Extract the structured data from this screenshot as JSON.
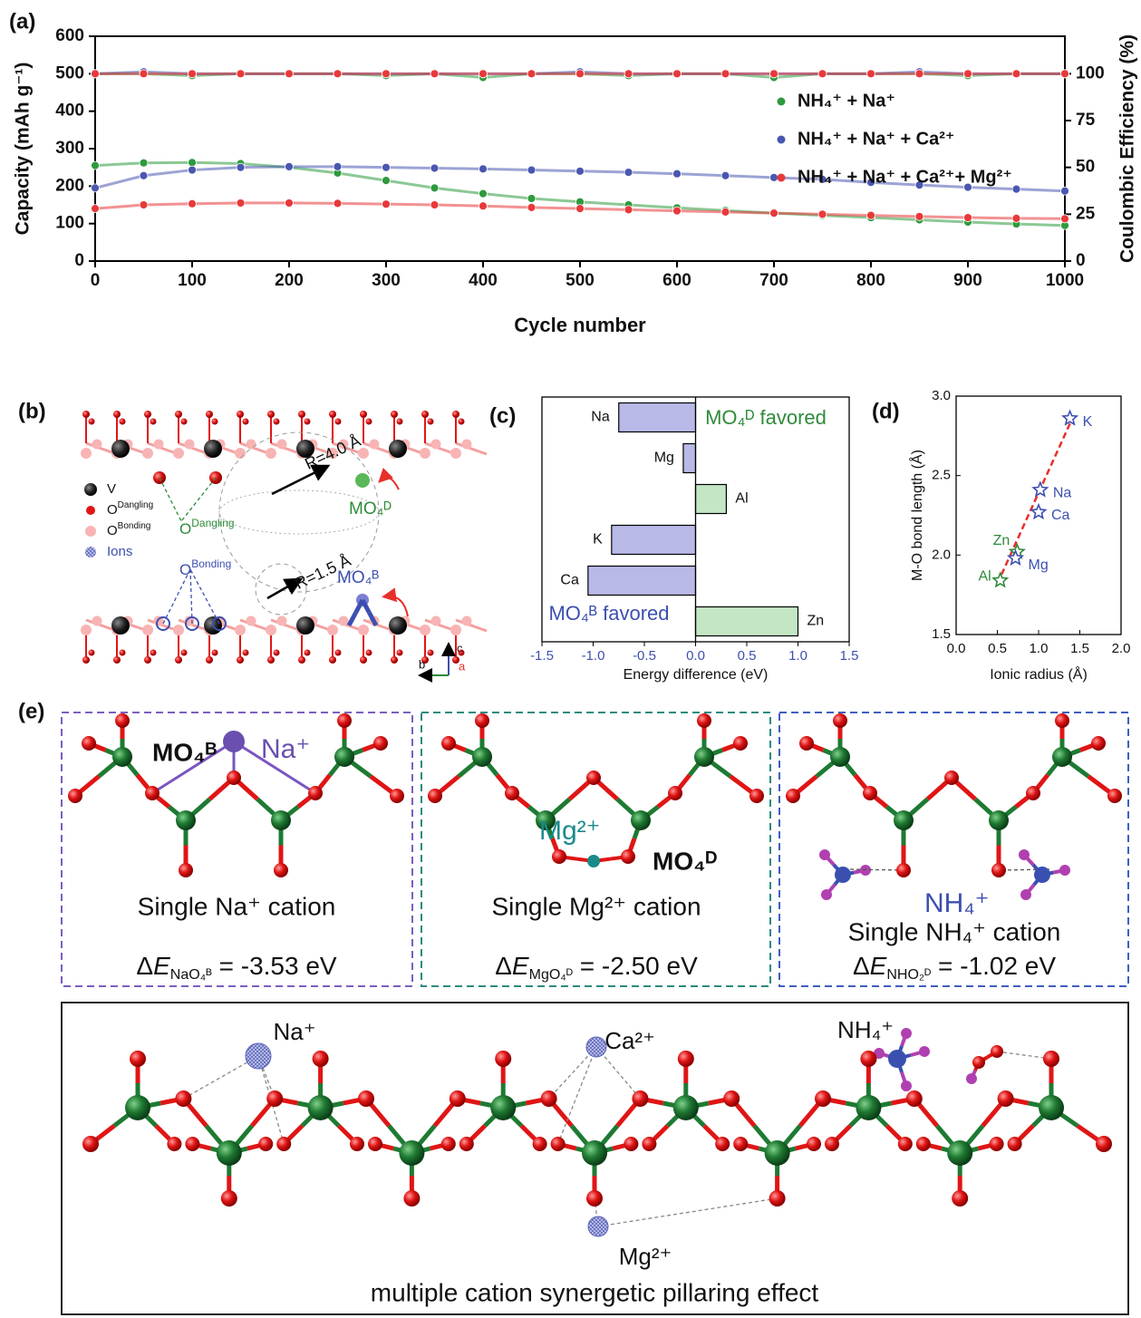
{
  "chart_data": [
    {
      "type": "line",
      "panel": "(a)",
      "xlabel": "Cycle number",
      "ylabel": "Capacity (mAh g⁻¹)",
      "y2label": "Coulombic Efficiency (%)",
      "x": [
        0,
        50,
        100,
        150,
        200,
        250,
        300,
        350,
        400,
        450,
        500,
        550,
        600,
        650,
        700,
        750,
        800,
        850,
        900,
        950,
        1000
      ],
      "xlim": [
        0,
        1000
      ],
      "xticks": [
        0,
        100,
        200,
        300,
        400,
        500,
        600,
        700,
        800,
        900,
        1000
      ],
      "ylim": [
        0,
        600
      ],
      "yticks": [
        0,
        100,
        200,
        300,
        400,
        500,
        600
      ],
      "y2lim": [
        0,
        120
      ],
      "y2ticks": [
        0,
        25,
        50,
        75,
        100
      ],
      "series": [
        {
          "name": "NH₄⁺ + Na⁺",
          "color": "#2e9a3e",
          "values": [
            255,
            262,
            263,
            260,
            250,
            235,
            215,
            195,
            180,
            167,
            158,
            150,
            142,
            135,
            128,
            122,
            116,
            110,
            104,
            99,
            95
          ]
        },
        {
          "name": "NH₄⁺ + Na⁺ + Ca²⁺",
          "color": "#4a57b0",
          "values": [
            195,
            228,
            243,
            250,
            252,
            252,
            250,
            248,
            246,
            243,
            240,
            237,
            233,
            228,
            223,
            218,
            210,
            203,
            197,
            192,
            187
          ]
        },
        {
          "name": "NH₄⁺ + Na⁺ + Ca²⁺+ Mg²⁺",
          "color": "#e8393a",
          "values": [
            140,
            150,
            153,
            155,
            155,
            154,
            152,
            150,
            147,
            143,
            140,
            137,
            134,
            131,
            128,
            125,
            122,
            119,
            116,
            114,
            113
          ]
        },
        {
          "axis": "y2",
          "color": "#2e9a3e",
          "values": [
            100,
            100,
            99,
            100,
            100,
            100,
            99,
            100,
            98,
            100,
            100,
            99,
            100,
            100,
            98,
            100,
            100,
            100,
            99,
            100,
            100
          ]
        },
        {
          "axis": "y2",
          "color": "#4a57b0",
          "values": [
            100,
            101,
            100,
            100,
            100,
            100,
            100,
            100,
            100,
            100,
            101,
            100,
            100,
            100,
            100,
            100,
            100,
            101,
            100,
            100,
            100
          ]
        },
        {
          "axis": "y2",
          "color": "#e8393a",
          "values": [
            100,
            100,
            100,
            100,
            100,
            100,
            100,
            100,
            100,
            100,
            100,
            100,
            100,
            100,
            100,
            100,
            100,
            100,
            100,
            100,
            100
          ]
        }
      ]
    },
    {
      "type": "bar",
      "panel": "(c)",
      "xlabel": "Energy difference (eV)",
      "categories": [
        "Na",
        "Mg",
        "Al",
        "K",
        "Ca",
        "Zn"
      ],
      "values": [
        -0.75,
        -0.12,
        0.3,
        -0.82,
        -1.05,
        1.0
      ],
      "colors": [
        "#b9b9e8",
        "#b9b9e8",
        "#c4e6c4",
        "#b9b9e8",
        "#b9b9e8",
        "#c4e6c4"
      ],
      "xlim": [
        -1.5,
        1.5
      ],
      "xticks": [
        -1.5,
        {
          "value": -1,
          "label": "-1.0"
        },
        -0.5,
        {
          "value": 0,
          "label": "0.0"
        },
        0.5,
        {
          "value": 1,
          "label": "1.0"
        },
        1.5
      ],
      "annotations": [
        {
          "text": "MO₄ᴰ favored",
          "color": "#2e8b3a"
        },
        {
          "text": "MO₄ᴮ favored",
          "color": "#3c4fb0"
        }
      ]
    },
    {
      "type": "scatter",
      "panel": "(d)",
      "xlabel": "Ionic radius (Å)",
      "ylabel": "M-O bond length (Å)",
      "labels": [
        "K",
        "Na",
        "Ca",
        "Zn",
        "Mg",
        "Al"
      ],
      "x": [
        1.38,
        1.02,
        1.0,
        0.74,
        0.72,
        0.535
      ],
      "values": [
        2.86,
        2.41,
        2.27,
        2.02,
        1.98,
        1.84
      ],
      "colors": [
        "#3c4fb0",
        "#3c4fb0",
        "#3c4fb0",
        "#2e8b3a",
        "#3c4fb0",
        "#2e8b3a"
      ],
      "xlim": [
        0,
        2
      ],
      "xticks": [
        {
          "value": 0,
          "label": "0.0"
        },
        0.5,
        {
          "value": 1,
          "label": "1.0"
        },
        1.5,
        {
          "value": 2,
          "label": "2.0"
        }
      ],
      "ylim": [
        1.5,
        3
      ],
      "yticks": [
        1.5,
        {
          "value": 2,
          "label": "2.0"
        },
        2.5,
        {
          "value": 3,
          "label": "3.0"
        }
      ],
      "fit": {
        "x": [
          0.5,
          1.4
        ],
        "y": [
          1.82,
          2.85
        ],
        "color": "#e8302a"
      }
    }
  ],
  "diagram_b": {
    "panel": "(b)",
    "legend": [
      {
        "text": "V"
      },
      {
        "text": "O",
        "sup": "Dangling"
      },
      {
        "text": "O",
        "sup": "Bonding"
      },
      {
        "text": "Ions"
      }
    ],
    "dangling": {
      "text": "O",
      "sup": "Dangling"
    },
    "bonding": {
      "text": "O",
      "sup": "Bonding"
    },
    "r_top": "R=4.0 Å",
    "r_bottom": "R=1.5 Å",
    "mo4d": "MO₄ᴰ",
    "mo4b": "MO₄ᴮ",
    "axes": [
      "c",
      "b",
      "a"
    ]
  },
  "diagram_e": {
    "panel": "(e)",
    "boxes": [
      {
        "site": "MO₄ᴮ",
        "ion": "Na⁺",
        "caption": "Single Na⁺ cation",
        "energy": [
          "Δ",
          "E",
          "NaO₄ᴮ",
          " = -3.53 eV"
        ]
      },
      {
        "site": "MO₄ᴰ",
        "ion": "Mg²⁺",
        "caption": "Single Mg²⁺ cation",
        "energy": [
          "Δ",
          "E",
          "MgO₄ᴰ",
          " = -2.50 eV"
        ]
      },
      {
        "ion": "NH₄⁺",
        "caption": "Single NH₄⁺ cation",
        "energy": [
          "Δ",
          "E",
          "NHO₂ᴰ",
          " = -1.02 eV"
        ]
      }
    ],
    "bottom": {
      "ions": [
        "Na⁺",
        "Ca²⁺",
        "NH₄⁺",
        "Mg²⁺"
      ],
      "caption": "multiple cation synergetic pillaring effect"
    }
  }
}
